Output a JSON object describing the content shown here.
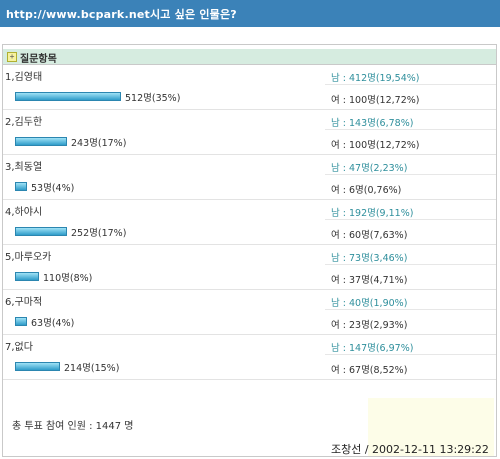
{
  "header": {
    "title": "http://www.bcpark.net시고 싶은 인물은?"
  },
  "section": {
    "label": "질문항목"
  },
  "items": [
    {
      "name": "1,김영태",
      "count": "512명(35%)",
      "pct": 35,
      "male": "남 : 412명(19,54%)",
      "female": "여 : 100명(12,72%)"
    },
    {
      "name": "2,김두한",
      "count": "243명(17%)",
      "pct": 17,
      "male": "남 : 143명(6,78%)",
      "female": "여 : 100명(12,72%)"
    },
    {
      "name": "3,최동열",
      "count": "53명(4%)",
      "pct": 4,
      "male": "남 : 47명(2,23%)",
      "female": "여 : 6명(0,76%)"
    },
    {
      "name": "4,하야시",
      "count": "252명(17%)",
      "pct": 17,
      "male": "남 : 192명(9,11%)",
      "female": "여 : 60명(7,63%)"
    },
    {
      "name": "5,마루오카",
      "count": "110명(8%)",
      "pct": 8,
      "male": "남 : 73명(3,46%)",
      "female": "여 : 37명(4,71%)"
    },
    {
      "name": "6,구마적",
      "count": "63명(4%)",
      "pct": 4,
      "male": "남 : 40명(1,90%)",
      "female": "여 : 23명(2,93%)"
    },
    {
      "name": "7,없다",
      "count": "214명(15%)",
      "pct": 15,
      "male": "남 : 147명(6,97%)",
      "female": "여 : 67명(8,52%)"
    }
  ],
  "total": "총 투표 참여 인원 : 1447 명",
  "footer": {
    "author": "조창선 / 2002-12-11 13:29:22"
  }
}
